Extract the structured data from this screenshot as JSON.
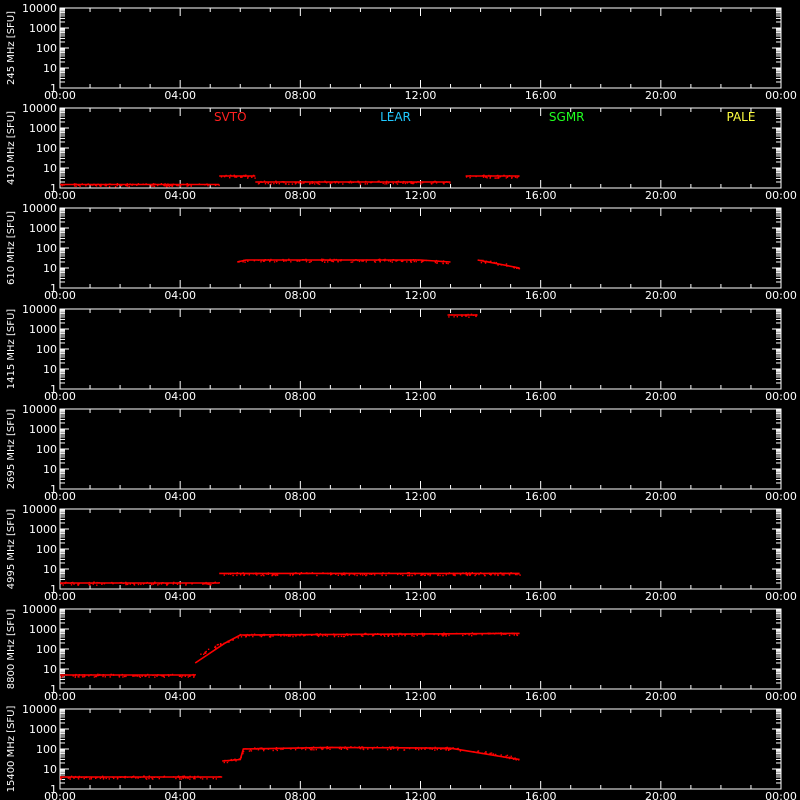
{
  "chart_data": {
    "type": "scatter",
    "x_axis": {
      "range": [
        "00:00",
        "24:00"
      ],
      "tick_labels": [
        "00:00",
        "04:00",
        "08:00",
        "12:00",
        "16:00",
        "20:00",
        "00:00"
      ]
    },
    "y_axis": {
      "scale": "log",
      "range": [
        1,
        10000
      ],
      "tick_labels": [
        "1",
        "10",
        "100",
        "1000",
        "10000"
      ]
    },
    "grid": false,
    "colors": {
      "background": "#000000",
      "axes": "#ffffff",
      "data": "#ff0000"
    },
    "stations": [
      {
        "label": "SVTO",
        "color": "#ff2020"
      },
      {
        "label": "LEAR",
        "color": "#20c8ff"
      },
      {
        "label": "SGMR",
        "color": "#20ff20"
      },
      {
        "label": "PALE",
        "color": "#ffff40"
      }
    ],
    "panels": [
      {
        "ylabel": "245 MHz [SFU]",
        "series": []
      },
      {
        "ylabel": "410 MHz [SFU]",
        "series": [
          {
            "x_hours": [
              0.0,
              5.3
            ],
            "y_sfu": [
              1.5,
              1.5
            ]
          },
          {
            "x_hours": [
              5.3,
              6.5
            ],
            "y_sfu": [
              4,
              4
            ]
          },
          {
            "x_hours": [
              6.5,
              13.0
            ],
            "y_sfu": [
              2,
              2
            ]
          },
          {
            "x_hours": [
              13.5,
              15.3
            ],
            "y_sfu": [
              4,
              4
            ]
          }
        ]
      },
      {
        "ylabel": "610 MHz [SFU]",
        "series": [
          {
            "x_hours": [
              5.9,
              6.2,
              9.0,
              12.0,
              13.0
            ],
            "y_sfu": [
              20,
              25,
              25,
              25,
              20
            ]
          },
          {
            "x_hours": [
              13.9,
              15.3
            ],
            "y_sfu": [
              25,
              10
            ]
          }
        ]
      },
      {
        "ylabel": "1415 MHz [SFU]",
        "series": [
          {
            "x_hours": [
              12.9,
              13.9
            ],
            "y_sfu": [
              5000,
              5000
            ]
          }
        ]
      },
      {
        "ylabel": "2695 MHz [SFU]",
        "series": []
      },
      {
        "ylabel": "4995 MHz [SFU]",
        "series": [
          {
            "x_hours": [
              0.0,
              5.3
            ],
            "y_sfu": [
              2,
              2
            ]
          },
          {
            "x_hours": [
              5.3,
              15.3
            ],
            "y_sfu": [
              6,
              6
            ]
          }
        ]
      },
      {
        "ylabel": "8800 MHz [SFU]",
        "series": [
          {
            "x_hours": [
              0.0,
              4.5
            ],
            "y_sfu": [
              5,
              5
            ]
          },
          {
            "x_hours": [
              4.5,
              5.5,
              6.0,
              15.3
            ],
            "y_sfu": [
              20,
              200,
              500,
              600
            ]
          }
        ]
      },
      {
        "ylabel": "15400 MHz [SFU]",
        "series": [
          {
            "x_hours": [
              0.0,
              5.4
            ],
            "y_sfu": [
              4,
              4
            ]
          },
          {
            "x_hours": [
              5.4,
              6.0,
              6.1,
              9.0,
              13.0,
              15.3
            ],
            "y_sfu": [
              25,
              30,
              100,
              120,
              110,
              30
            ]
          }
        ]
      }
    ]
  }
}
